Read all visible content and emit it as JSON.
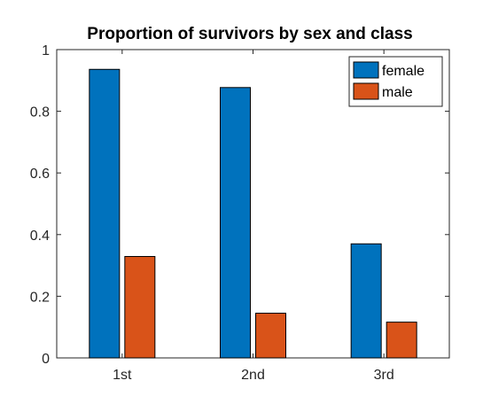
{
  "chart_data": {
    "type": "bar",
    "title": "Proportion of survivors by sex and class",
    "xlabel": "",
    "ylabel": "",
    "categories": [
      "1st",
      "2nd",
      "3rd"
    ],
    "series": [
      {
        "name": "female",
        "color": "#0072BD",
        "values": [
          0.936,
          0.877,
          0.37
        ]
      },
      {
        "name": "male",
        "color": "#D95319",
        "values": [
          0.329,
          0.145,
          0.116
        ]
      }
    ],
    "ylim": [
      0,
      1
    ],
    "yticks": [
      "0",
      "0.2",
      "0.4",
      "0.6",
      "0.8",
      "1"
    ],
    "ytick_values": [
      0,
      0.2,
      0.4,
      0.6,
      0.8,
      1
    ],
    "grid": false,
    "legend": "top-right"
  }
}
